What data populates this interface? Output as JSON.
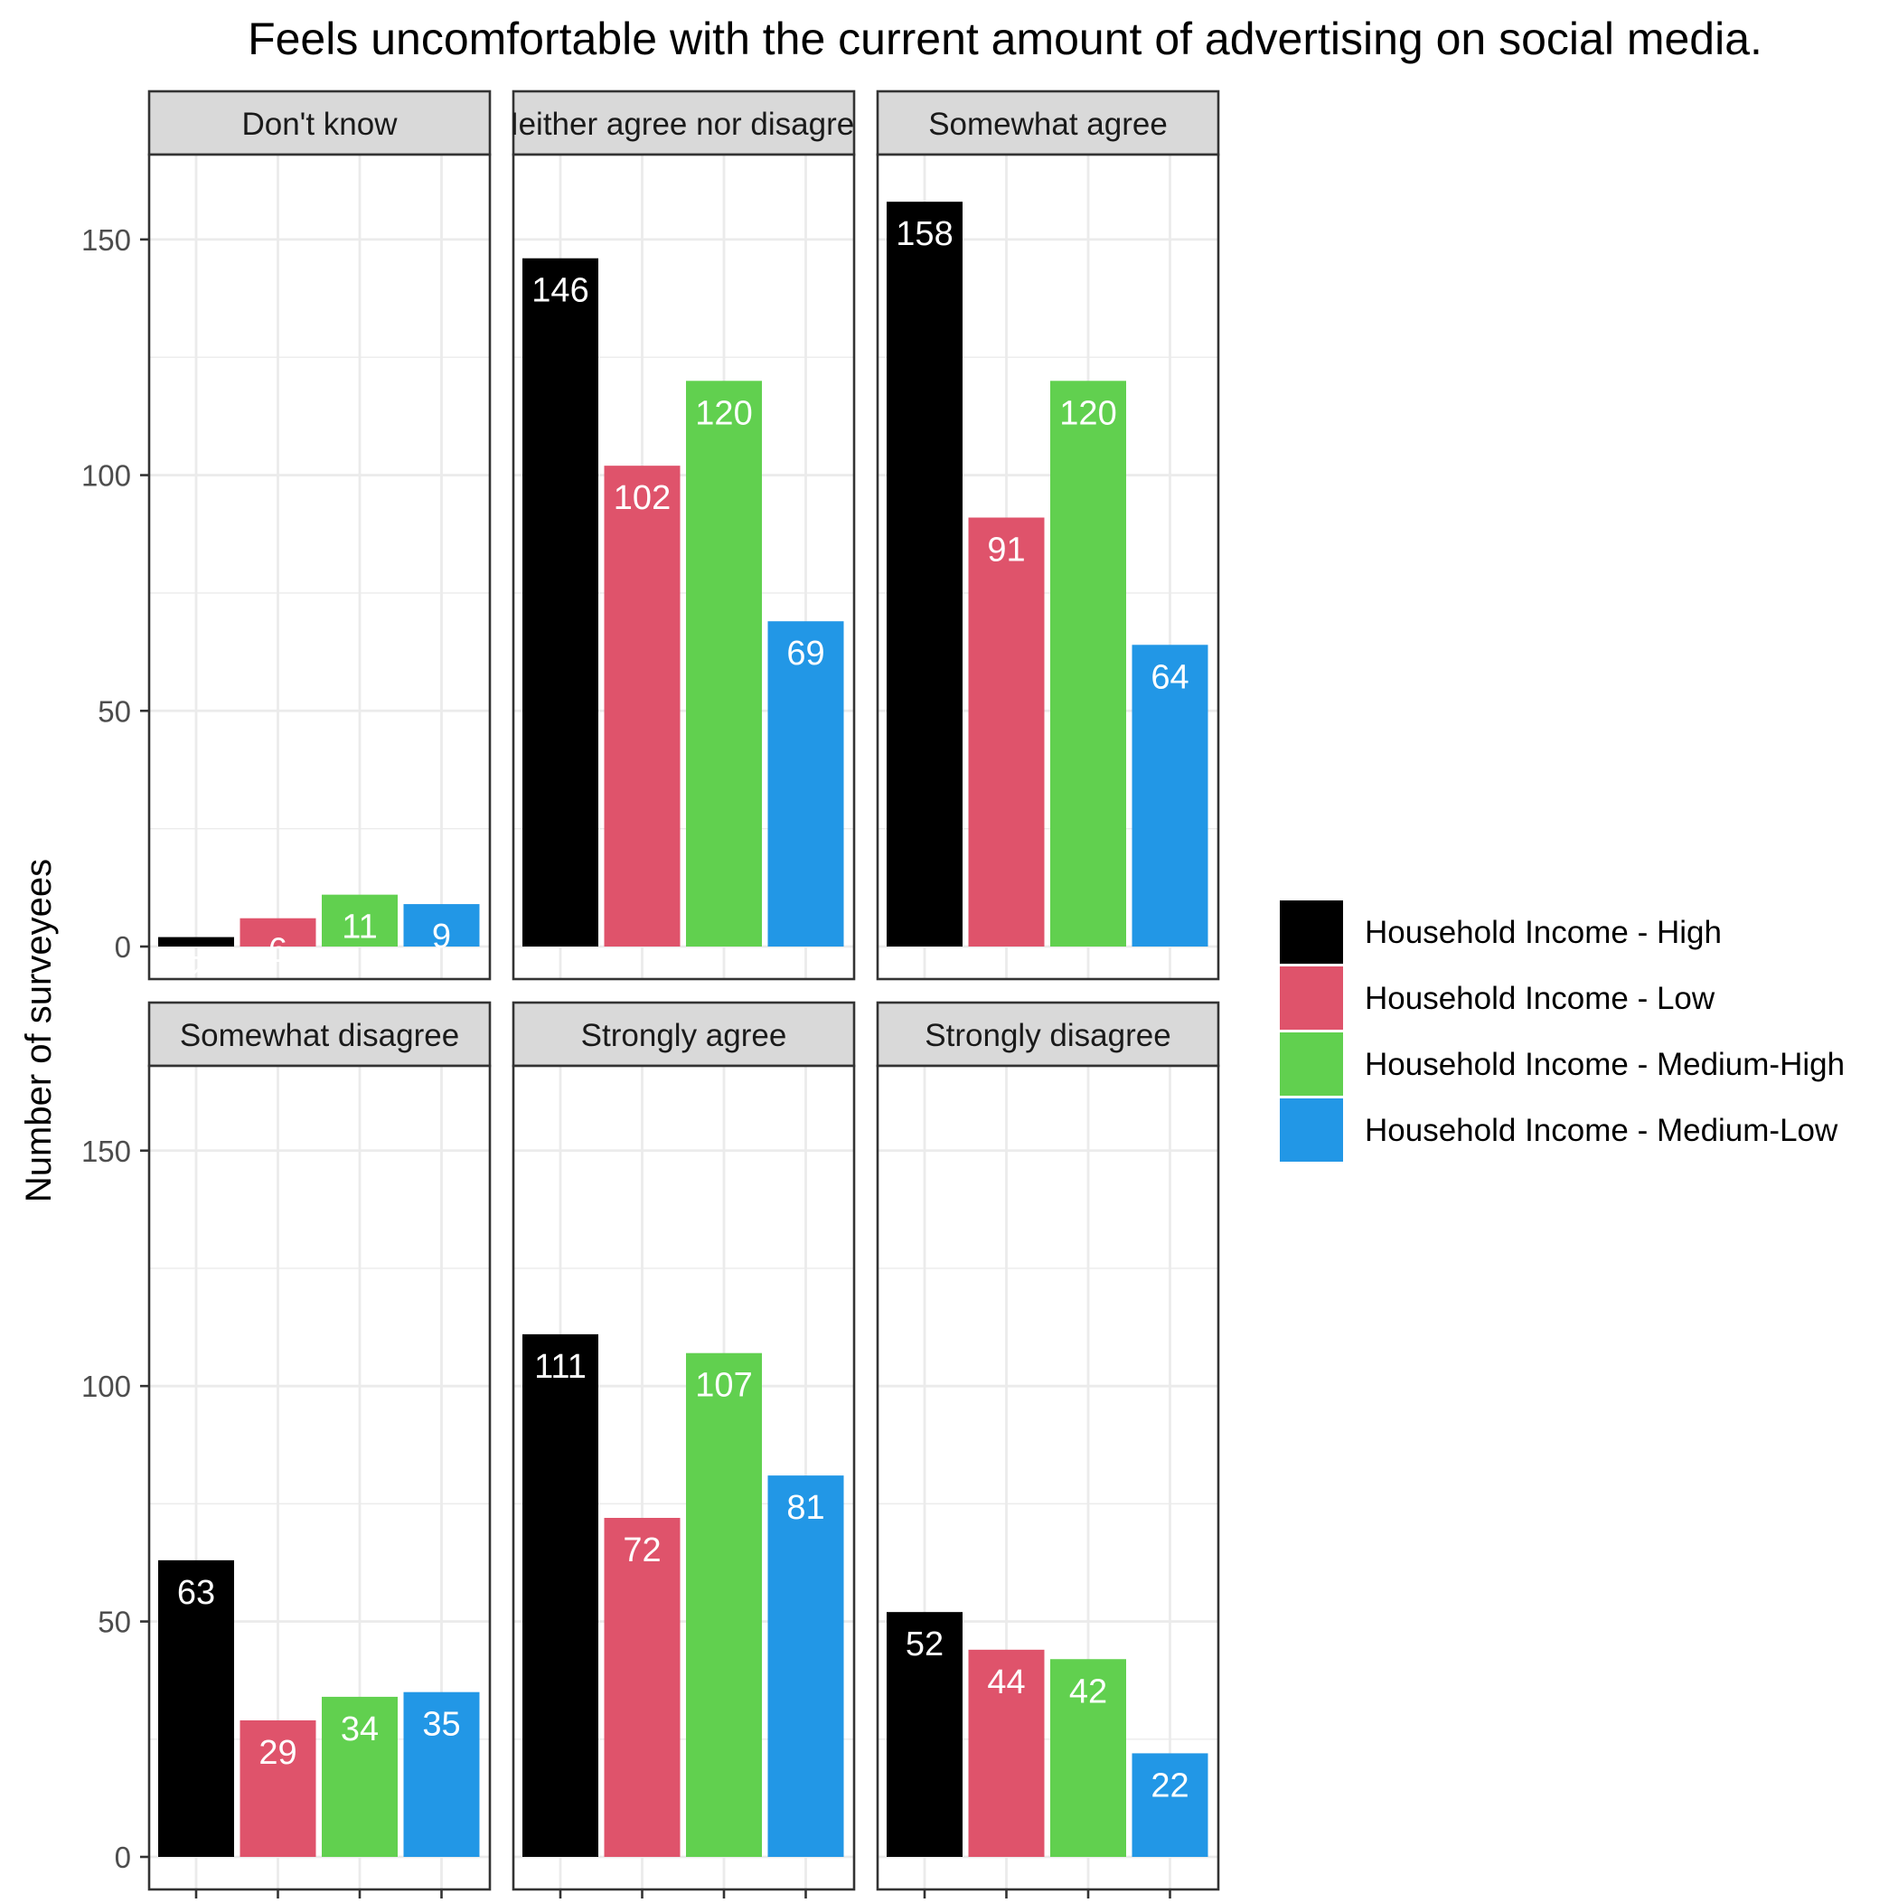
{
  "chart_data": {
    "type": "bar",
    "title": "Feels uncomfortable with the current amount of advertising on social media.",
    "xlabel": "",
    "ylabel": "Number of surveyees",
    "ylim": [
      0,
      168
    ],
    "yticks": [
      0,
      50,
      100,
      150
    ],
    "grid": true,
    "legend_position": "right",
    "series": [
      {
        "name": "Household Income - High",
        "color": "#000000"
      },
      {
        "name": "Household Income - Low",
        "color": "#DF536B"
      },
      {
        "name": "Household Income - Medium-High",
        "color": "#61D04F"
      },
      {
        "name": "Household Income - Medium-Low",
        "color": "#2297E6"
      }
    ],
    "panels": [
      {
        "label": "Don't know",
        "values": [
          2,
          6,
          11,
          9
        ]
      },
      {
        "label": "Neither agree nor disagree",
        "values": [
          146,
          102,
          120,
          69
        ]
      },
      {
        "label": "Somewhat agree",
        "values": [
          158,
          91,
          120,
          64
        ]
      },
      {
        "label": "Somewhat disagree",
        "values": [
          63,
          29,
          34,
          35
        ]
      },
      {
        "label": "Strongly agree",
        "values": [
          111,
          72,
          107,
          81
        ]
      },
      {
        "label": "Strongly disagree",
        "values": [
          52,
          44,
          42,
          22
        ]
      }
    ]
  }
}
